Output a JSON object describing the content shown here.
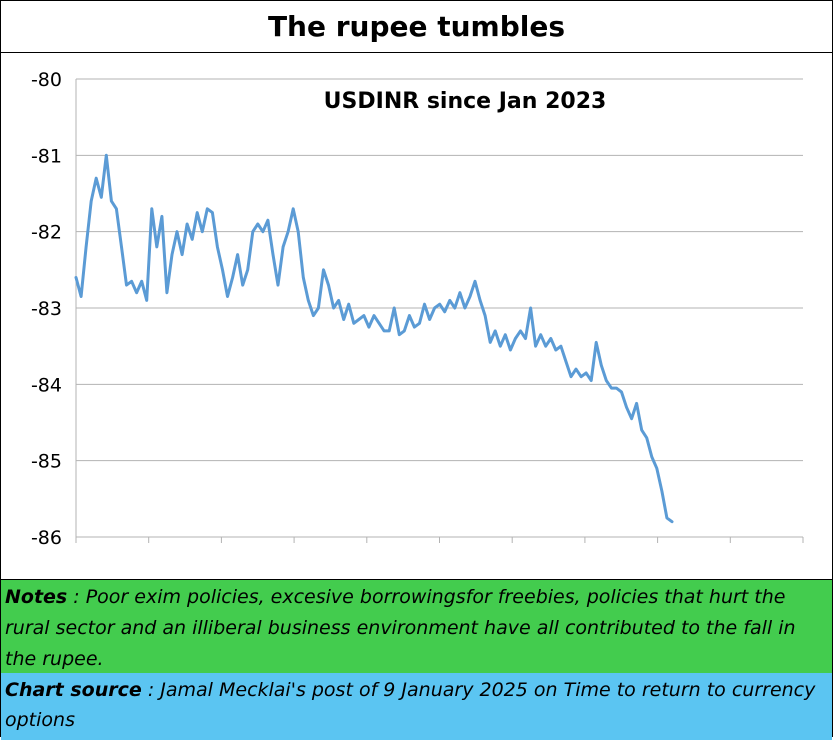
{
  "header": {
    "title": "The rupee tumbles"
  },
  "notes": {
    "label": "Notes",
    "sep": " : ",
    "text": "Poor exim policies, excesive borrowingsfor freebies, policies that hurt the rural sector and an illiberal business environment have all contributed to the fall in the rupee."
  },
  "source": {
    "label": "Chart source",
    "sep": " : ",
    "text": "Jamal Mecklai's post of 9 January 2025 on Time to return to currency options"
  },
  "colors": {
    "line": "#5b9bd5",
    "grid": "#b3b3b3",
    "notes_bg": "#43cc4e",
    "source_bg": "#5bc5f2"
  },
  "chart_data": {
    "type": "line",
    "title": "USDINR since Jan 2023",
    "xlabel": "",
    "ylabel": "",
    "ylim": [
      -86,
      -80
    ],
    "yticks": [
      -80,
      -81,
      -82,
      -83,
      -84,
      -85,
      -86
    ],
    "grid": true,
    "x_categories": 10,
    "series": [
      {
        "values": [
          -82.6,
          -82.85,
          -82.2,
          -81.6,
          -81.3,
          -81.55,
          -81.0,
          -81.6,
          -81.7,
          -82.2,
          -82.7,
          -82.65,
          -82.8,
          -82.65,
          -82.9,
          -81.7,
          -82.2,
          -81.8,
          -82.8,
          -82.3,
          -82.0,
          -82.3,
          -81.9,
          -82.1,
          -81.75,
          -82.0,
          -81.7,
          -81.75,
          -82.2,
          -82.5,
          -82.85,
          -82.6,
          -82.3,
          -82.7,
          -82.5,
          -82.0,
          -81.9,
          -82.0,
          -81.85,
          -82.3,
          -82.7,
          -82.2,
          -82.0,
          -81.7,
          -82.0,
          -82.6,
          -82.9,
          -83.1,
          -83.0,
          -82.5,
          -82.7,
          -83.0,
          -82.9,
          -83.15,
          -82.95,
          -83.2,
          -83.15,
          -83.1,
          -83.25,
          -83.1,
          -83.2,
          -83.3,
          -83.3,
          -83.0,
          -83.35,
          -83.3,
          -83.1,
          -83.25,
          -83.2,
          -82.95,
          -83.15,
          -83.0,
          -82.95,
          -83.05,
          -82.9,
          -83.0,
          -82.8,
          -83.0,
          -82.85,
          -82.65,
          -82.9,
          -83.1,
          -83.45,
          -83.3,
          -83.5,
          -83.35,
          -83.55,
          -83.4,
          -83.3,
          -83.4,
          -83.0,
          -83.5,
          -83.35,
          -83.5,
          -83.4,
          -83.55,
          -83.5,
          -83.7,
          -83.9,
          -83.8,
          -83.9,
          -83.85,
          -83.95,
          -83.45,
          -83.75,
          -83.95,
          -84.05,
          -84.05,
          -84.1,
          -84.3,
          -84.45,
          -84.25,
          -84.6,
          -84.7,
          -84.95,
          -85.1,
          -85.4,
          -85.75,
          -85.8
        ]
      }
    ]
  }
}
